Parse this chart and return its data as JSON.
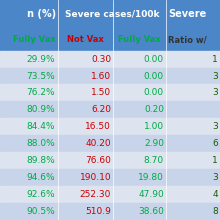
{
  "col_headers_row1": [
    "n (%)",
    "Severe cases/100k",
    "Severe"
  ],
  "col_headers_row2": [
    "Fully Vax",
    "Not Vax",
    "Fully Vax",
    "Ratio w/"
  ],
  "rows": [
    [
      "29.9%",
      "0.30",
      "0.00",
      "1"
    ],
    [
      "73.5%",
      "1.60",
      "0.00",
      "3"
    ],
    [
      "76.2%",
      "1.50",
      "0.00",
      "3"
    ],
    [
      "80.9%",
      "6.20",
      "0.20",
      ""
    ],
    [
      "84.4%",
      "16.50",
      "1.00",
      "3"
    ],
    [
      "88.0%",
      "40.20",
      "2.90",
      "6"
    ],
    [
      "89.8%",
      "76.60",
      "8.70",
      "1"
    ],
    [
      "94.6%",
      "190.10",
      "19.80",
      "3"
    ],
    [
      "92.6%",
      "252.30",
      "47.90",
      "4"
    ],
    [
      "90.5%",
      "510.9",
      "38.60",
      "8"
    ]
  ],
  "header_bg": "#4a86c8",
  "header_text": "#ffffff",
  "subheader_bg": "#4a86c8",
  "subheader_not_vax_color": "#cc0000",
  "subheader_fully_vax_color": "#00aa44",
  "row_bg_odd": "#dde4f0",
  "row_bg_even": "#c8d4ea",
  "col0_color": "#00aa44",
  "col1_color": "#cc0000",
  "col2_color": "#00aa44",
  "col3_color": "#1a5c00",
  "figsize": [
    2.2,
    2.2
  ],
  "dpi": 100
}
